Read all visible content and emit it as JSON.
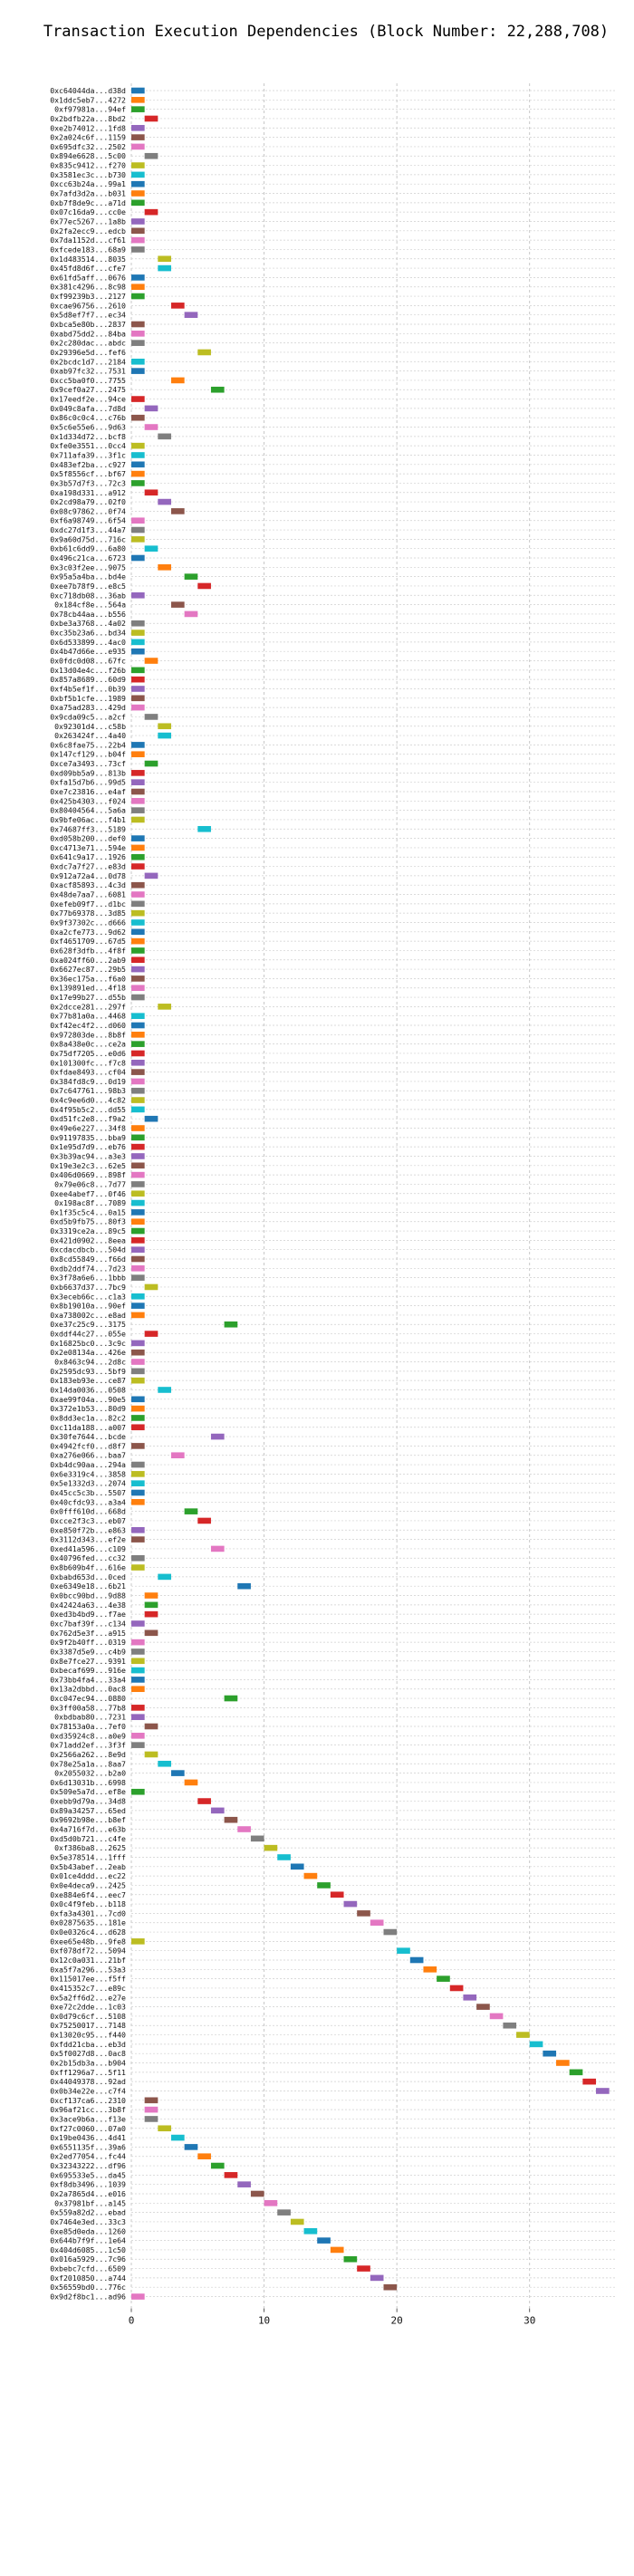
{
  "chart_data": {
    "type": "bar",
    "title": "Transaction Execution Dependencies (Block Number: 22,288,708)",
    "xlabel": "",
    "ylabel": "",
    "xlim": [
      0,
      36.5
    ],
    "xticks": [
      0,
      10,
      20,
      30
    ],
    "grid": true,
    "palette": [
      "#1f77b4",
      "#ff7f0e",
      "#2ca02c",
      "#d62728",
      "#9467bd",
      "#8c564b",
      "#e377c2",
      "#7f7f7f",
      "#bcbd22",
      "#17becf"
    ],
    "transactions": [
      {
        "label": "0xc64044da...d38d",
        "start": 0
      },
      {
        "label": "0x1ddc5eb7...4272",
        "start": 0
      },
      {
        "label": "0xf97981a...94ef",
        "start": 0
      },
      {
        "label": "0x2bdfb22a...8bd2",
        "start": 1
      },
      {
        "label": "0xe2b74012...1fd8",
        "start": 0
      },
      {
        "label": "0x2a024c6f...1159",
        "start": 0
      },
      {
        "label": "0x695dfc32...2502",
        "start": 0
      },
      {
        "label": "0x894e6628...5c00",
        "start": 1
      },
      {
        "label": "0x835c9412...f270",
        "start": 0
      },
      {
        "label": "0x3581ec3c...b730",
        "start": 0
      },
      {
        "label": "0xcc63b24a...99a1",
        "start": 0
      },
      {
        "label": "0x7afd3d2a...b031",
        "start": 0
      },
      {
        "label": "0xb7f8de9c...a71d",
        "start": 0
      },
      {
        "label": "0x07c16da9...cc0e",
        "start": 1
      },
      {
        "label": "0x77ec5267...1a8b",
        "start": 0
      },
      {
        "label": "0x2fa2ecc9...edcb",
        "start": 0
      },
      {
        "label": "0x7da1152d...cf61",
        "start": 0
      },
      {
        "label": "0xfcede183...68a9",
        "start": 0
      },
      {
        "label": "0x1d483514...8035",
        "start": 2
      },
      {
        "label": "0x45fd8d6f...cfe7",
        "start": 2
      },
      {
        "label": "0x61fd5aff...0676",
        "start": 0
      },
      {
        "label": "0x381c4296...8c98",
        "start": 0
      },
      {
        "label": "0xf99239b3...2127",
        "start": 0
      },
      {
        "label": "0xcae96756...2610",
        "start": 3
      },
      {
        "label": "0x5d8ef7f7...ec34",
        "start": 4
      },
      {
        "label": "0xbca5e80b...2837",
        "start": 0
      },
      {
        "label": "0xabd75dd2...84ba",
        "start": 0
      },
      {
        "label": "0x2c280dac...abdc",
        "start": 0
      },
      {
        "label": "0x29396e5d...fef6",
        "start": 5
      },
      {
        "label": "0x2bcdc1d7...2184",
        "start": 0
      },
      {
        "label": "0xab97fc32...7531",
        "start": 0
      },
      {
        "label": "0xcc5ba0f0...7755",
        "start": 3
      },
      {
        "label": "0x9cef0a27...2475",
        "start": 6
      },
      {
        "label": "0x17eedf2e...94ce",
        "start": 0
      },
      {
        "label": "0x049c8afa...7d8d",
        "start": 1
      },
      {
        "label": "0x86c0c0c4...c76b",
        "start": 0
      },
      {
        "label": "0x5c6e55e6...9d63",
        "start": 1
      },
      {
        "label": "0x1d334d72...bcf8",
        "start": 2
      },
      {
        "label": "0xfe0e3551...0cc4",
        "start": 0
      },
      {
        "label": "0x711afa39...3f1c",
        "start": 0
      },
      {
        "label": "0x483ef2ba...c927",
        "start": 0
      },
      {
        "label": "0x5f8556cf...bf67",
        "start": 0
      },
      {
        "label": "0x3b57d7f3...72c3",
        "start": 0
      },
      {
        "label": "0xa198d331...a912",
        "start": 1
      },
      {
        "label": "0x2cd98a79...02f0",
        "start": 2
      },
      {
        "label": "0x08c97862...0f74",
        "start": 3
      },
      {
        "label": "0xf6a98749...6f54",
        "start": 0
      },
      {
        "label": "0xdc27d1f3...44a7",
        "start": 0
      },
      {
        "label": "0x9a60d75d...716c",
        "start": 0
      },
      {
        "label": "0xb61c6dd9...6a80",
        "start": 1
      },
      {
        "label": "0x496c21ca...6723",
        "start": 0
      },
      {
        "label": "0x3c03f2ee...9075",
        "start": 2
      },
      {
        "label": "0x95a5a4ba...bd4e",
        "start": 4
      },
      {
        "label": "0xee7b78f9...e8c5",
        "start": 5
      },
      {
        "label": "0xc718db08...36ab",
        "start": 0
      },
      {
        "label": "0x184cf8e...564a",
        "start": 3
      },
      {
        "label": "0x78cb44aa...b556",
        "start": 4
      },
      {
        "label": "0xbe3a3768...4a02",
        "start": 0
      },
      {
        "label": "0xc35b23a6...bd34",
        "start": 0
      },
      {
        "label": "0x6d533899...4ac0",
        "start": 0
      },
      {
        "label": "0x4b47d66e...e935",
        "start": 0
      },
      {
        "label": "0x0fdc0d08...67fc",
        "start": 1
      },
      {
        "label": "0x13d04e4c...f26b",
        "start": 0
      },
      {
        "label": "0x857a8689...60d9",
        "start": 0
      },
      {
        "label": "0xf4b5ef1f...0b39",
        "start": 0
      },
      {
        "label": "0xbf5b1cfe...1989",
        "start": 0
      },
      {
        "label": "0xa75ad283...429d",
        "start": 0
      },
      {
        "label": "0x9cda09c5...a2cf",
        "start": 1
      },
      {
        "label": "0x92301d4...c58b",
        "start": 2
      },
      {
        "label": "0x263424f...4a40",
        "start": 2
      },
      {
        "label": "0x6c8fae75...22b4",
        "start": 0
      },
      {
        "label": "0x147cf129...b04f",
        "start": 0
      },
      {
        "label": "0xce7a3493...73cf",
        "start": 1
      },
      {
        "label": "0xd09bb5a9...813b",
        "start": 0
      },
      {
        "label": "0xfa15d7b6...99d5",
        "start": 0
      },
      {
        "label": "0xe7c23816...e4af",
        "start": 0
      },
      {
        "label": "0x425b4303...f024",
        "start": 0
      },
      {
        "label": "0x80404564...5a6a",
        "start": 0
      },
      {
        "label": "0x9bfe06ac...f4b1",
        "start": 0
      },
      {
        "label": "0x74687ff3...5189",
        "start": 5
      },
      {
        "label": "0xd058b200...def0",
        "start": 0
      },
      {
        "label": "0xc4713e71...594e",
        "start": 0
      },
      {
        "label": "0x641c9a17...1926",
        "start": 0
      },
      {
        "label": "0xdc7a7f27...e83d",
        "start": 0
      },
      {
        "label": "0x912a72a4...0d78",
        "start": 1
      },
      {
        "label": "0xacf85893...4c3d",
        "start": 0
      },
      {
        "label": "0x48de7aa7...6081",
        "start": 0
      },
      {
        "label": "0xefeb09f7...d1bc",
        "start": 0
      },
      {
        "label": "0x77b69378...3d85",
        "start": 0
      },
      {
        "label": "0x9f37302c...d666",
        "start": 0
      },
      {
        "label": "0xa2cfe773...9d62",
        "start": 0
      },
      {
        "label": "0xf4651709...67d5",
        "start": 0
      },
      {
        "label": "0x628f3dfb...4f8f",
        "start": 0
      },
      {
        "label": "0xa024ff60...2ab9",
        "start": 0
      },
      {
        "label": "0x6627ec87...29b5",
        "start": 0
      },
      {
        "label": "0x36ec175a...f6a0",
        "start": 0
      },
      {
        "label": "0x139891ed...4f18",
        "start": 0
      },
      {
        "label": "0x17e99b27...d55b",
        "start": 0
      },
      {
        "label": "0x2dcce281...297f",
        "start": 2
      },
      {
        "label": "0x77b81a0a...4468",
        "start": 0
      },
      {
        "label": "0xf42ec4f2...d060",
        "start": 0
      },
      {
        "label": "0x972803de...8b8f",
        "start": 0
      },
      {
        "label": "0x8a438e0c...ce2a",
        "start": 0
      },
      {
        "label": "0x75df7205...e0d6",
        "start": 0
      },
      {
        "label": "0x101300fc...f7c8",
        "start": 0
      },
      {
        "label": "0xfdae8493...cf04",
        "start": 0
      },
      {
        "label": "0x384fd8c9...0d19",
        "start": 0
      },
      {
        "label": "0x7c647761...98b3",
        "start": 0
      },
      {
        "label": "0x4c9ee6d0...4c82",
        "start": 0
      },
      {
        "label": "0x4f95b5c2...dd55",
        "start": 0
      },
      {
        "label": "0xd51fc2e8...f9a2",
        "start": 1
      },
      {
        "label": "0x49e6e227...34f8",
        "start": 0
      },
      {
        "label": "0x91197835...bba9",
        "start": 0
      },
      {
        "label": "0x1e95d7d9...eb76",
        "start": 0
      },
      {
        "label": "0x3b39ac94...a3e3",
        "start": 0
      },
      {
        "label": "0x19e3e2c3...62e5",
        "start": 0
      },
      {
        "label": "0x406d0669...898f",
        "start": 0
      },
      {
        "label": "0x79e06c8...7d77",
        "start": 0
      },
      {
        "label": "0xee4abef7...0f46",
        "start": 0
      },
      {
        "label": "0x198ac8f...7089",
        "start": 0
      },
      {
        "label": "0x1f35c5c4...0a15",
        "start": 0
      },
      {
        "label": "0xd5b9fb75...80f3",
        "start": 0
      },
      {
        "label": "0x3319ce2a...89c5",
        "start": 0
      },
      {
        "label": "0x421d0902...8eea",
        "start": 0
      },
      {
        "label": "0xcdacdbcb...504d",
        "start": 0
      },
      {
        "label": "0x8cd55849...f66d",
        "start": 0
      },
      {
        "label": "0xdb2ddf74...7d23",
        "start": 0
      },
      {
        "label": "0x3f78a6e6...1bbb",
        "start": 0
      },
      {
        "label": "0xb6637d37...7bc9",
        "start": 1
      },
      {
        "label": "0x3eceb66c...c1a3",
        "start": 0
      },
      {
        "label": "0x8b19010a...90ef",
        "start": 0
      },
      {
        "label": "0xa738002c...e8ad",
        "start": 0
      },
      {
        "label": "0xe37c25c9...3175",
        "start": 7
      },
      {
        "label": "0xddf44c27...055e",
        "start": 1
      },
      {
        "label": "0x16825bc0...3c9c",
        "start": 0
      },
      {
        "label": "0x2e08134a...426e",
        "start": 0
      },
      {
        "label": "0x8463c94...2d8c",
        "start": 0
      },
      {
        "label": "0x2595dc93...5bf9",
        "start": 0
      },
      {
        "label": "0x183eb93e...ce87",
        "start": 0
      },
      {
        "label": "0x14da0036...0508",
        "start": 2
      },
      {
        "label": "0xae99f04a...90e5",
        "start": 0
      },
      {
        "label": "0x372e1b53...80d9",
        "start": 0
      },
      {
        "label": "0x8dd3ec1a...82c2",
        "start": 0
      },
      {
        "label": "0xc11da188...a007",
        "start": 0
      },
      {
        "label": "0x30fe7644...bcde",
        "start": 6
      },
      {
        "label": "0x4942fcf0...d8f7",
        "start": 0
      },
      {
        "label": "0xa276e066...baa7",
        "start": 3
      },
      {
        "label": "0xb4dc90aa...294a",
        "start": 0
      },
      {
        "label": "0x6e3319c4...3858",
        "start": 0
      },
      {
        "label": "0x5e1332d3...2074",
        "start": 0
      },
      {
        "label": "0x45cc5c3b...5507",
        "start": 0
      },
      {
        "label": "0x40cfdc93...a3a4",
        "start": 0
      },
      {
        "label": "0x0fff610d...668d",
        "start": 4
      },
      {
        "label": "0xcce2f3c3...eb07",
        "start": 5
      },
      {
        "label": "0xe850f72b...e863",
        "start": 0
      },
      {
        "label": "0x3112d343...ef2e",
        "start": 0
      },
      {
        "label": "0xed41a596...c109",
        "start": 6
      },
      {
        "label": "0x40796fed...cc32",
        "start": 0
      },
      {
        "label": "0x8b609b4f...616e",
        "start": 0
      },
      {
        "label": "0xbabd653d...0ced",
        "start": 2
      },
      {
        "label": "0xe6349e18...6b21",
        "start": 8
      },
      {
        "label": "0x0bcc90bd...9d88",
        "start": 1
      },
      {
        "label": "0x42424a63...4e38",
        "start": 1
      },
      {
        "label": "0xed3b4bd9...f7ae",
        "start": 1
      },
      {
        "label": "0xc7baf39f...c134",
        "start": 0
      },
      {
        "label": "0x762d5e3f...a915",
        "start": 1
      },
      {
        "label": "0x9f2b40ff...0319",
        "start": 0
      },
      {
        "label": "0x3387d5e9...c4b9",
        "start": 0
      },
      {
        "label": "0x8e7fce27...9391",
        "start": 0
      },
      {
        "label": "0xbecaf699...916e",
        "start": 0
      },
      {
        "label": "0x73bb4fa4...33a4",
        "start": 0
      },
      {
        "label": "0x13a2dbbd...0ac8",
        "start": 0
      },
      {
        "label": "0xc047ec94...0880",
        "start": 7
      },
      {
        "label": "0x3ff00a58...77b8",
        "start": 0
      },
      {
        "label": "0xbdbab80...7231",
        "start": 0
      },
      {
        "label": "0x78153a0a...7ef0",
        "start": 1
      },
      {
        "label": "0xd35924c8...a0e9",
        "start": 0
      },
      {
        "label": "0x71add2ef...3f3f",
        "start": 0
      },
      {
        "label": "0x2566a262...8e9d",
        "start": 1
      },
      {
        "label": "0x78e25a1a...8aa7",
        "start": 2
      },
      {
        "label": "0x2055032...b2a0",
        "start": 3
      },
      {
        "label": "0x6d13031b...6998",
        "start": 4
      },
      {
        "label": "0x509e5a7d...ef8e",
        "start": 0
      },
      {
        "label": "0xebb9d79a...34d8",
        "start": 5
      },
      {
        "label": "0x89a34257...65ed",
        "start": 6
      },
      {
        "label": "0x9692b98e...b8ef",
        "start": 7
      },
      {
        "label": "0x4a716f7d...e63b",
        "start": 8
      },
      {
        "label": "0xd5d0b721...c4fe",
        "start": 9
      },
      {
        "label": "0xf386ba8...2625",
        "start": 10
      },
      {
        "label": "0x5e378514...1fff",
        "start": 11
      },
      {
        "label": "0x5b43abef...2eab",
        "start": 12
      },
      {
        "label": "0x01ce4ddd...ec22",
        "start": 13
      },
      {
        "label": "0x0e4deca9...2425",
        "start": 14
      },
      {
        "label": "0xe884e6f4...eec7",
        "start": 15
      },
      {
        "label": "0x0c4f9feb...b118",
        "start": 16
      },
      {
        "label": "0xfa3a4301...7cd0",
        "start": 17
      },
      {
        "label": "0x02875635...181e",
        "start": 18
      },
      {
        "label": "0x0e0326c4...d628",
        "start": 19
      },
      {
        "label": "0xee65e48b...9fe8",
        "start": 0
      },
      {
        "label": "0xf078df72...5094",
        "start": 20
      },
      {
        "label": "0x12c0a031...21bf",
        "start": 21
      },
      {
        "label": "0xa5f7a296...53a3",
        "start": 22
      },
      {
        "label": "0x115017ee...f5ff",
        "start": 23
      },
      {
        "label": "0x415352c7...e89c",
        "start": 24
      },
      {
        "label": "0x5a2ff6d2...e27e",
        "start": 25
      },
      {
        "label": "0xe72c2dde...1c03",
        "start": 26
      },
      {
        "label": "0x0d79c6cf...5108",
        "start": 27
      },
      {
        "label": "0x75250017...7148",
        "start": 28
      },
      {
        "label": "0x13020c95...f440",
        "start": 29
      },
      {
        "label": "0xfdd21cba...eb3d",
        "start": 30
      },
      {
        "label": "0x5f0027d8...0ac8",
        "start": 31
      },
      {
        "label": "0x2b15db3a...b904",
        "start": 32
      },
      {
        "label": "0xff1296a7...5f11",
        "start": 33
      },
      {
        "label": "0x44049378...92ad",
        "start": 34
      },
      {
        "label": "0x0b34e22e...c7f4",
        "start": 35
      },
      {
        "label": "0xcf137ca6...2310",
        "start": 1
      },
      {
        "label": "0x96af21cc...3b8f",
        "start": 1
      },
      {
        "label": "0x3ace9b6a...f13e",
        "start": 1
      },
      {
        "label": "0xf27c0060...07a0",
        "start": 2
      },
      {
        "label": "0x19be0436...4d41",
        "start": 3
      },
      {
        "label": "0x6551135f...39a6",
        "start": 4
      },
      {
        "label": "0x2ed77054...fc44",
        "start": 5
      },
      {
        "label": "0x32343222...df96",
        "start": 6
      },
      {
        "label": "0x695533e5...da45",
        "start": 7
      },
      {
        "label": "0xf8db3496...1039",
        "start": 8
      },
      {
        "label": "0x2a7865d4...e016",
        "start": 9
      },
      {
        "label": "0x37981bf...a145",
        "start": 10
      },
      {
        "label": "0x559a82d2...ebad",
        "start": 11
      },
      {
        "label": "0x7464e3ed...33c3",
        "start": 12
      },
      {
        "label": "0xe85d0eda...1260",
        "start": 13
      },
      {
        "label": "0x644b7f9f...1e64",
        "start": 14
      },
      {
        "label": "0x404d6085...1c50",
        "start": 15
      },
      {
        "label": "0x016a5929...7c96",
        "start": 16
      },
      {
        "label": "0xbebc7cfd...6509",
        "start": 17
      },
      {
        "label": "0xf2010850...a744",
        "start": 18
      },
      {
        "label": "0x56559bd0...776c",
        "start": 19
      },
      {
        "label": "0x9d2f8bc1...ad96",
        "start": 0
      }
    ]
  }
}
